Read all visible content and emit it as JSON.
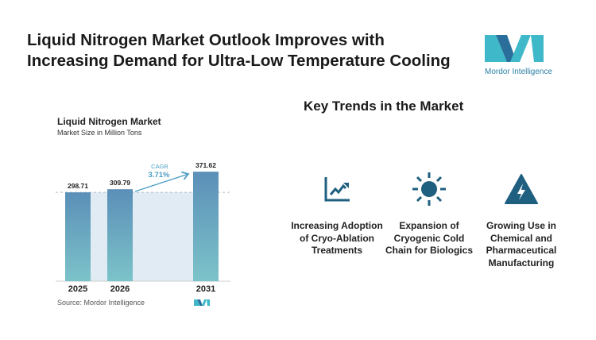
{
  "title": "Liquid Nitrogen Market Outlook Improves with Increasing Demand for Ultra-Low Temperature Cooling",
  "logo": {
    "text": "Mordor Intelligence",
    "colors": [
      "#3fb9c9",
      "#2a6f9b"
    ]
  },
  "chart_data": {
    "type": "bar",
    "title": "Liquid Nitrogen Market",
    "subtitle": "Market Size in Million Tons",
    "categories": [
      "2025",
      "2026",
      "2031"
    ],
    "values": [
      298.71,
      309.79,
      371.62
    ],
    "data_labels": [
      "298.71",
      "309.79",
      "371.62"
    ],
    "annotation": {
      "label": "CAGR",
      "value": "3.71%"
    },
    "grid": false,
    "colors": {
      "bar_top": "#5b8fb8",
      "bar_bottom": "#7cc3c9",
      "shade": "#e1ebf3",
      "accent": "#4a9cc4"
    },
    "source": "Source: Mordor Intelligence"
  },
  "trends": {
    "heading": "Key Trends in the Market",
    "items": [
      {
        "icon": "line-chart-up-icon",
        "label": "Increasing Adoption of Cryo-Ablation Treatments"
      },
      {
        "icon": "sun-icon",
        "label": "Expansion of Cryogenic Cold Chain for Biologics"
      },
      {
        "icon": "warning-lightning-icon",
        "label": "Growing Use in Chemical and Pharmaceutical Manufacturing"
      }
    ],
    "icon_color": "#1f5f80"
  }
}
